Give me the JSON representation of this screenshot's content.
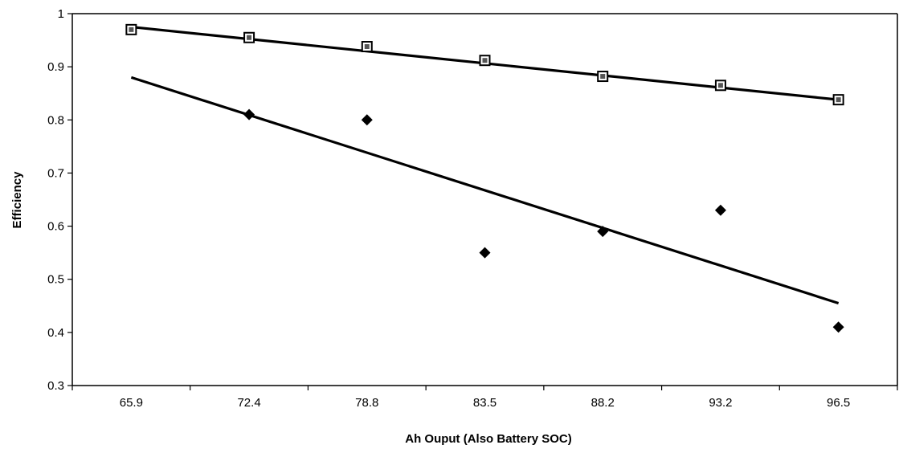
{
  "chart_data": {
    "type": "scatter",
    "title": "",
    "xlabel": "Ah Ouput (Also Battery SOC)",
    "ylabel": "Efficiency",
    "categories": [
      "65.9",
      "72.4",
      "78.8",
      "83.5",
      "88.2",
      "93.2",
      "96.5"
    ],
    "ylim": [
      0.3,
      1.0
    ],
    "yticks": [
      0.3,
      0.4,
      0.5,
      0.6,
      0.7,
      0.8,
      0.9,
      1
    ],
    "ytick_labels": [
      "0.3",
      "0.4",
      "0.5",
      "0.6",
      "0.7",
      "0.8",
      "0.9",
      "1"
    ],
    "grid": false,
    "legend": "none",
    "series": [
      {
        "marker": "square",
        "color": "#000000",
        "values": [
          0.97,
          0.955,
          0.938,
          0.912,
          0.882,
          0.865,
          0.838
        ],
        "trendline": {
          "type": "linear",
          "start": 0.975,
          "end": 0.838
        }
      },
      {
        "marker": "diamond",
        "color": "#000000",
        "values": [
          null,
          0.81,
          0.8,
          0.55,
          0.59,
          0.63,
          0.41
        ],
        "trendline": {
          "type": "linear",
          "start": 0.88,
          "end": 0.455
        }
      }
    ]
  }
}
